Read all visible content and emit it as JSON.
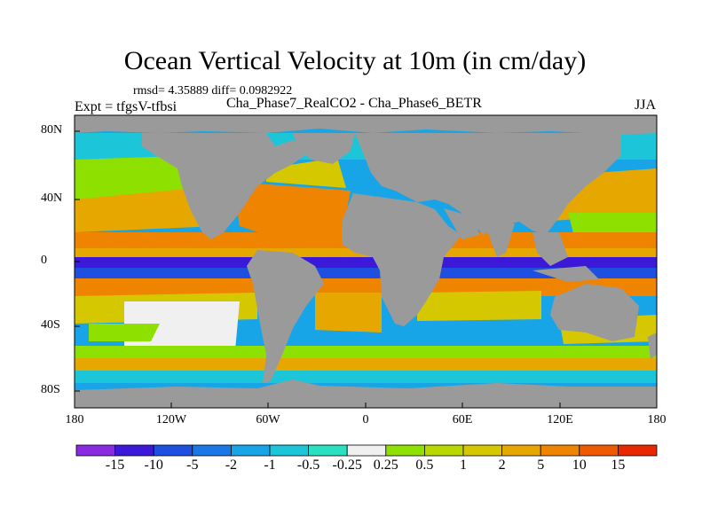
{
  "title": "Ocean Vertical Velocity at 10m (in cm/day)",
  "stats": "rmsd= 4.35889 diff= 0.0982922",
  "left_label": "Expt = tfgsV-tfbsi",
  "center_label": "Cha_Phase7_RealCO2 - Cha_Phase6_BETR",
  "right_label": "JJA",
  "lat_ticks": [
    "80N",
    "40N",
    "0",
    "40S",
    "80S"
  ],
  "lon_ticks": [
    "180",
    "120W",
    "60W",
    "0",
    "60E",
    "120E",
    "180"
  ],
  "colorbar": {
    "colors": [
      "#8a2be2",
      "#3c18d8",
      "#1f4fe0",
      "#1a78e6",
      "#18a5e8",
      "#1cc6d8",
      "#2ae0c0",
      "#f0f0f0",
      "#8ee000",
      "#b8d800",
      "#d6c800",
      "#e6a800",
      "#ee8400",
      "#ef5a00",
      "#e82800"
    ],
    "labels": [
      "-15",
      "-10",
      "-5",
      "-2",
      "-1",
      "-0.5",
      "-0.25",
      "0.25",
      "0.5",
      "1",
      "2",
      "5",
      "10",
      "15"
    ]
  },
  "colors": {
    "land": "#9a9a9a",
    "ocean_base": "#18a5e8"
  }
}
